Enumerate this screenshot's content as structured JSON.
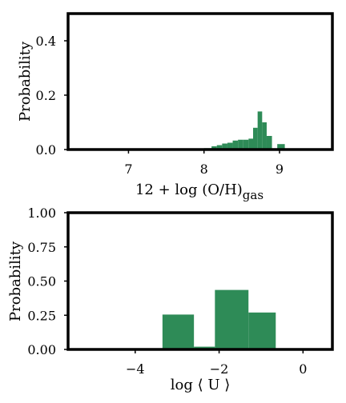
{
  "chart_data": [
    {
      "type": "bar",
      "ylabel": "Probability",
      "xlabel_main": "12 + log (O/H)",
      "xlabel_sub": "gas",
      "xlim": [
        6.2,
        9.7
      ],
      "ylim": [
        0,
        0.5
      ],
      "xticks": [
        {
          "v": 7,
          "label": "7"
        },
        {
          "v": 8,
          "label": "8"
        },
        {
          "v": 9,
          "label": "9"
        }
      ],
      "yticks": [
        {
          "v": 0.0,
          "label": "0.0"
        },
        {
          "v": 0.2,
          "label": "0.2"
        },
        {
          "v": 0.4,
          "label": "0.4"
        }
      ],
      "bar_color": "#2e8b57",
      "bars": [
        {
          "x0": 7.0,
          "x1": 7.05,
          "y": 0.002
        },
        {
          "x0": 7.6,
          "x1": 7.65,
          "y": 0.002
        },
        {
          "x0": 7.8,
          "x1": 7.85,
          "y": 0.003
        },
        {
          "x0": 7.9,
          "x1": 7.95,
          "y": 0.003
        },
        {
          "x0": 8.0,
          "x1": 8.05,
          "y": 0.005
        },
        {
          "x0": 8.05,
          "x1": 8.1,
          "y": 0.005
        },
        {
          "x0": 8.1,
          "x1": 8.17,
          "y": 0.012
        },
        {
          "x0": 8.17,
          "x1": 8.24,
          "y": 0.016
        },
        {
          "x0": 8.24,
          "x1": 8.31,
          "y": 0.022
        },
        {
          "x0": 8.31,
          "x1": 8.38,
          "y": 0.025
        },
        {
          "x0": 8.38,
          "x1": 8.45,
          "y": 0.033
        },
        {
          "x0": 8.45,
          "x1": 8.52,
          "y": 0.036
        },
        {
          "x0": 8.52,
          "x1": 8.59,
          "y": 0.036
        },
        {
          "x0": 8.59,
          "x1": 8.65,
          "y": 0.04
        },
        {
          "x0": 8.65,
          "x1": 8.71,
          "y": 0.08
        },
        {
          "x0": 8.71,
          "x1": 8.77,
          "y": 0.14
        },
        {
          "x0": 8.77,
          "x1": 8.83,
          "y": 0.1
        },
        {
          "x0": 8.83,
          "x1": 8.9,
          "y": 0.05
        },
        {
          "x0": 8.97,
          "x1": 9.07,
          "y": 0.02
        }
      ]
    },
    {
      "type": "bar",
      "ylabel": "Probability",
      "xlabel": "log ⟨ U ⟩",
      "xlim": [
        -5.6,
        0.7
      ],
      "ylim": [
        0,
        1.0
      ],
      "xticks": [
        {
          "v": -4,
          "label": "−4"
        },
        {
          "v": -2,
          "label": "−2"
        },
        {
          "v": 0,
          "label": "0"
        }
      ],
      "yticks": [
        {
          "v": 0.0,
          "label": "0.00"
        },
        {
          "v": 0.25,
          "label": "0.25"
        },
        {
          "v": 0.5,
          "label": "0.50"
        },
        {
          "v": 0.75,
          "label": "0.75"
        },
        {
          "v": 1.0,
          "label": "1.00"
        }
      ],
      "bar_color": "#2e8b57",
      "bars": [
        {
          "x0": -3.35,
          "x1": -2.6,
          "y": 0.255
        },
        {
          "x0": -2.6,
          "x1": -2.1,
          "y": 0.02
        },
        {
          "x0": -2.1,
          "x1": -1.3,
          "y": 0.435
        },
        {
          "x0": -1.3,
          "x1": -0.65,
          "y": 0.27
        }
      ]
    }
  ]
}
